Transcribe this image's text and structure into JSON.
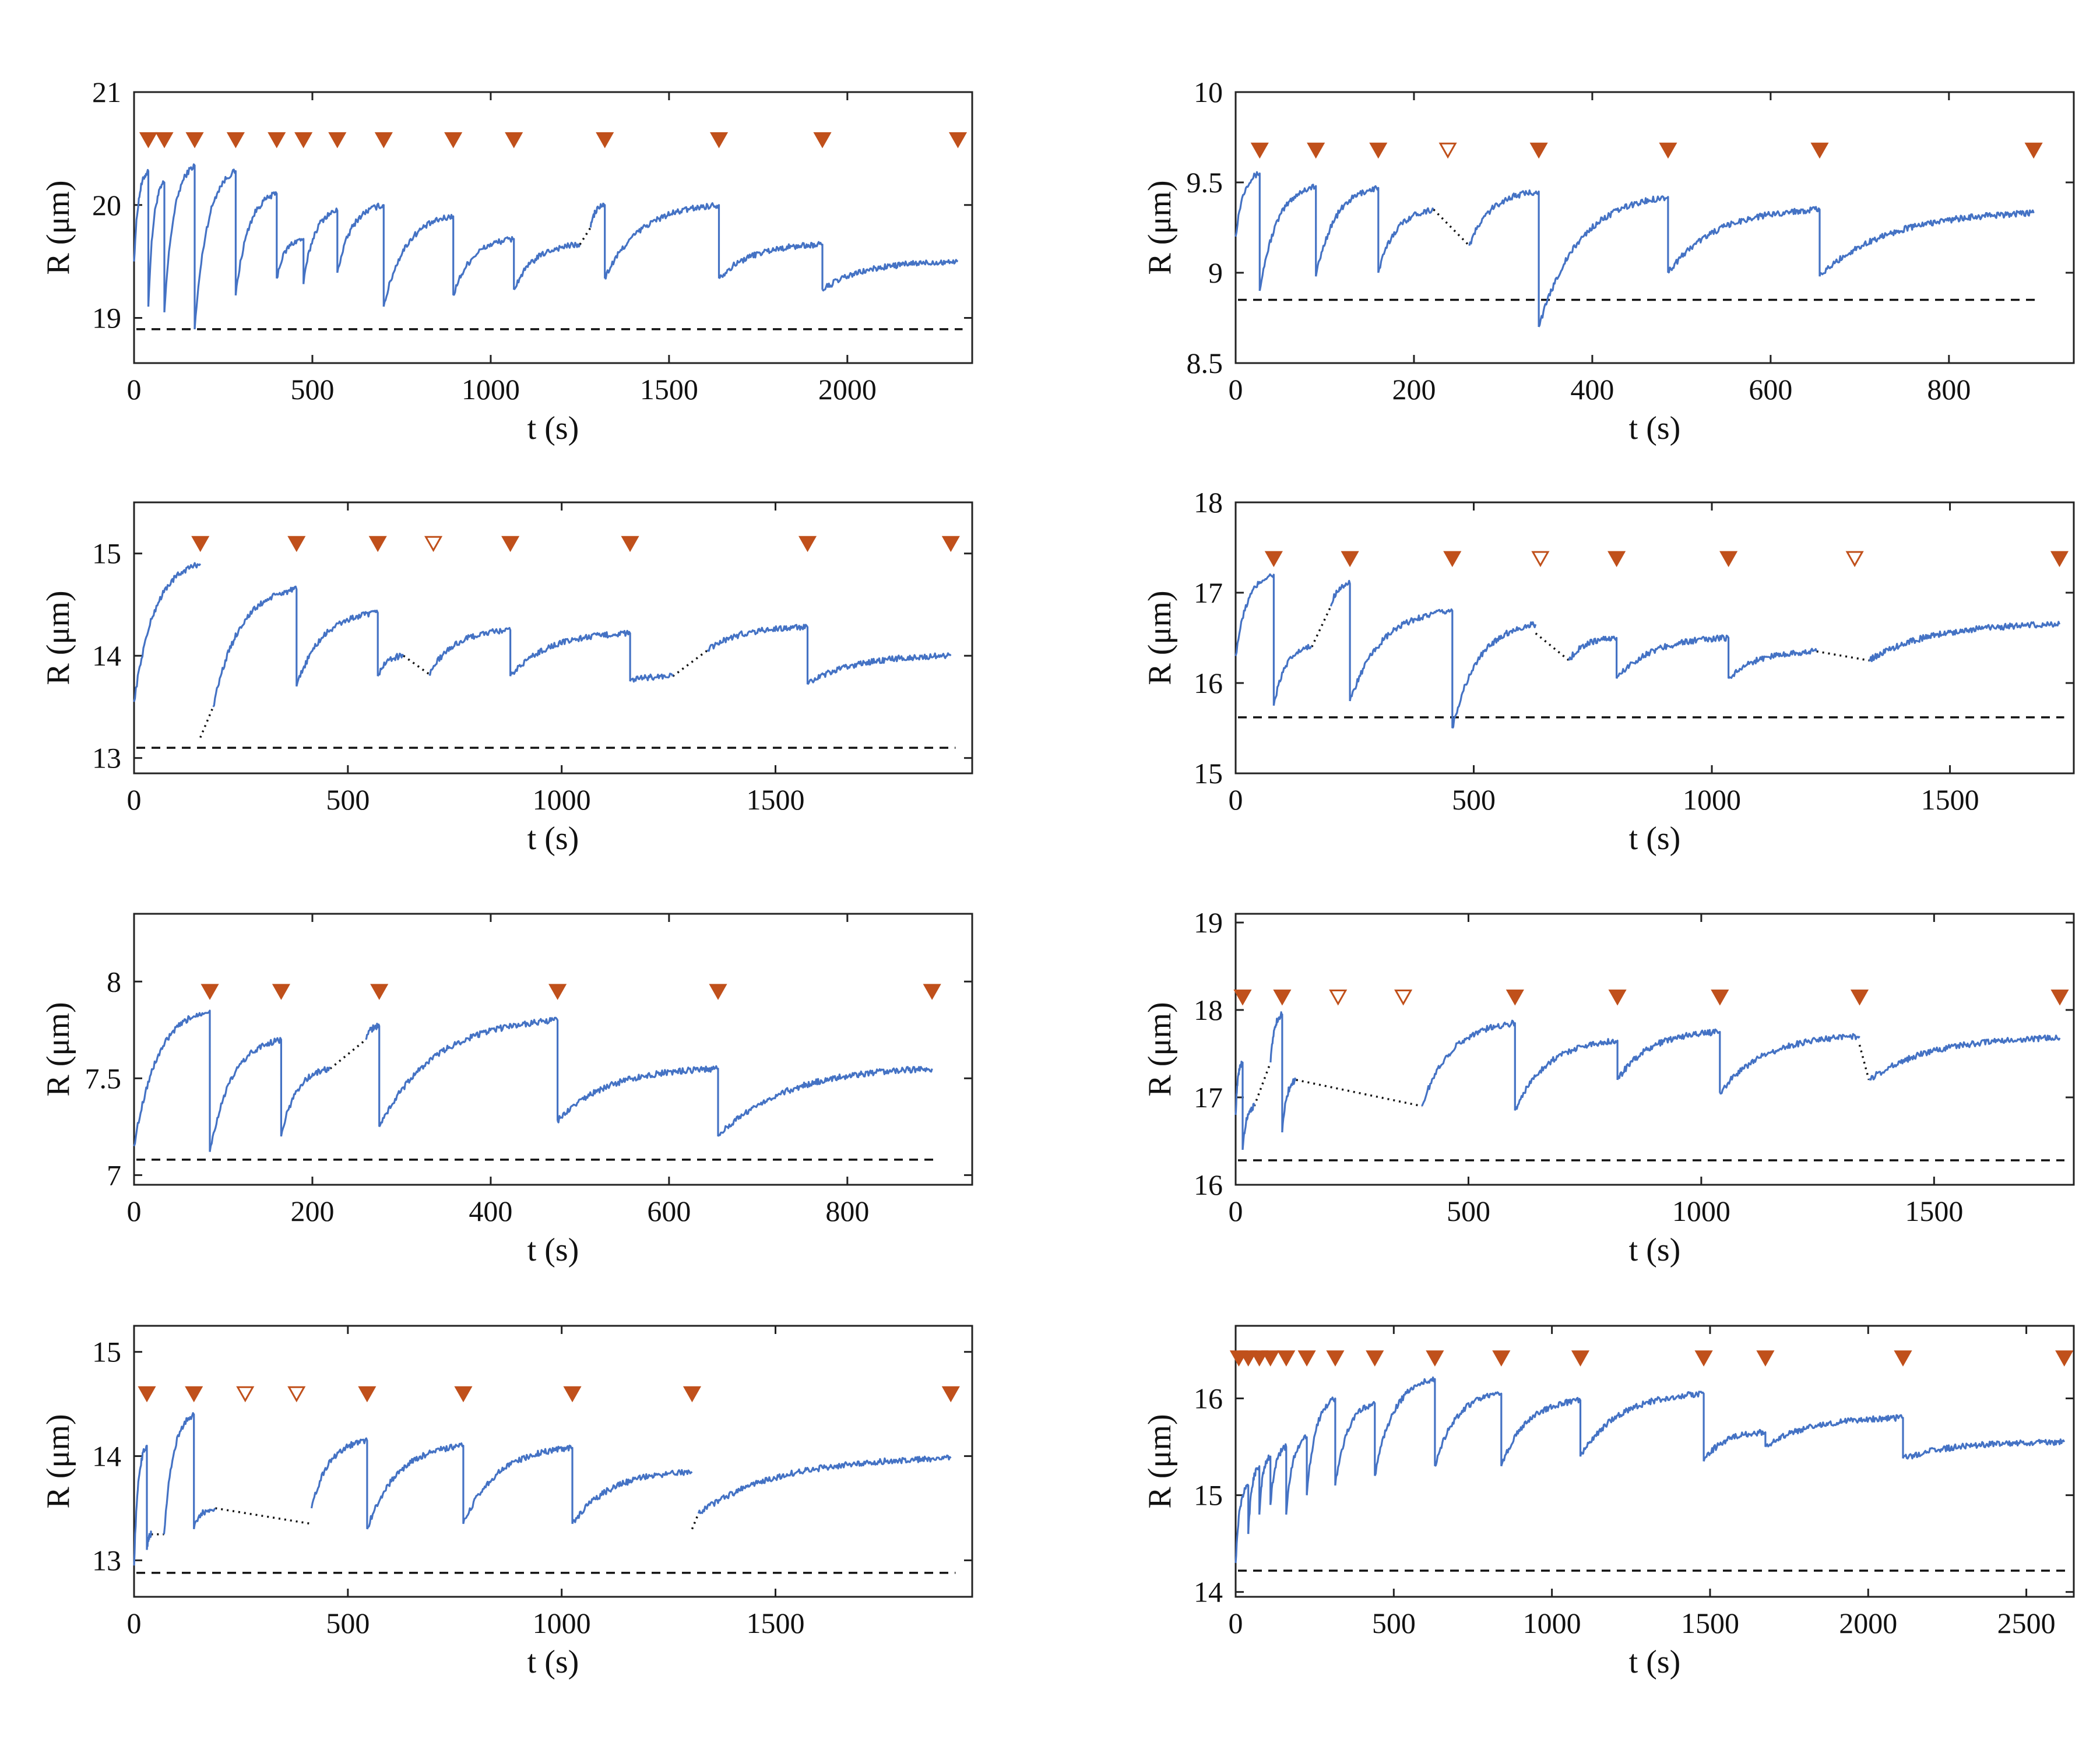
{
  "colors": {
    "trace": "#4472c4",
    "marker": "#c0501b",
    "axis": "#222222"
  },
  "chart_data": [
    {
      "type": "line",
      "xlabel": "t (s)",
      "ylabel": "R (μm)",
      "xlim": [
        0,
        2350
      ],
      "ylim": [
        18.6,
        21
      ],
      "xticks": [
        0,
        500,
        1000,
        1500,
        2000
      ],
      "xtick_labels": [
        "0",
        "500",
        "1000",
        "1500",
        "2000"
      ],
      "yticks": [
        19,
        20,
        21
      ],
      "ytick_labels": [
        "19",
        "20",
        "21"
      ],
      "baseline": 18.9,
      "marker_y": 20.58,
      "markers_filled": [
        40,
        85,
        170,
        285,
        400,
        475,
        570,
        700,
        895,
        1065,
        1320,
        1640,
        1930,
        2310
      ],
      "markers_open": [],
      "segments": [
        {
          "t0": 0,
          "t1": 40,
          "r0": 19.5,
          "r1": 20.3
        },
        {
          "t0": 40,
          "t1": 85,
          "r0": 19.1,
          "r1": 20.2
        },
        {
          "t0": 85,
          "t1": 170,
          "r0": 19.05,
          "r1": 20.35
        },
        {
          "t0": 170,
          "t1": 285,
          "r0": 18.9,
          "r1": 20.3
        },
        {
          "t0": 285,
          "t1": 400,
          "r0": 19.2,
          "r1": 20.1
        },
        {
          "t0": 400,
          "t1": 475,
          "r0": 19.35,
          "r1": 19.7
        },
        {
          "t0": 475,
          "t1": 570,
          "r0": 19.3,
          "r1": 19.95
        },
        {
          "t0": 570,
          "t1": 700,
          "r0": 19.4,
          "r1": 20.0
        },
        {
          "t0": 700,
          "t1": 895,
          "r0": 19.1,
          "r1": 19.9
        },
        {
          "t0": 895,
          "t1": 1065,
          "r0": 19.2,
          "r1": 19.7
        },
        {
          "t0": 1065,
          "t1": 1250,
          "r0": 19.25,
          "r1": 19.65
        },
        {
          "t0": 1280,
          "t1": 1320,
          "r0": 19.8,
          "r1": 20.0
        },
        {
          "t0": 1320,
          "t1": 1640,
          "r0": 19.35,
          "r1": 20.0
        },
        {
          "t0": 1640,
          "t1": 1930,
          "r0": 19.35,
          "r1": 19.65
        },
        {
          "t0": 1930,
          "t1": 2310,
          "r0": 19.25,
          "r1": 19.5
        }
      ],
      "gaps": [
        {
          "t0": 1250,
          "r0": 19.65,
          "t1": 1280,
          "r1": 19.8
        }
      ]
    },
    {
      "type": "line",
      "xlabel": "t (s)",
      "ylabel": "R (μm)",
      "xlim": [
        0,
        940
      ],
      "ylim": [
        8.5,
        10
      ],
      "xticks": [
        0,
        200,
        400,
        600,
        800
      ],
      "xtick_labels": [
        "0",
        "200",
        "400",
        "600",
        "800"
      ],
      "yticks": [
        8.5,
        9,
        9.5,
        10
      ],
      "ytick_labels": [
        "8.5",
        "9",
        "9.5",
        "10"
      ],
      "baseline": 8.85,
      "marker_y": 9.68,
      "markers_filled": [
        27,
        90,
        160,
        340,
        485,
        655,
        895
      ],
      "markers_open": [
        238
      ],
      "segments": [
        {
          "t0": 0,
          "t1": 27,
          "r0": 9.2,
          "r1": 9.55
        },
        {
          "t0": 27,
          "t1": 90,
          "r0": 8.9,
          "r1": 9.48
        },
        {
          "t0": 90,
          "t1": 160,
          "r0": 8.98,
          "r1": 9.47
        },
        {
          "t0": 160,
          "t1": 222,
          "r0": 9.0,
          "r1": 9.35
        },
        {
          "t0": 262,
          "t1": 340,
          "r0": 9.15,
          "r1": 9.45
        },
        {
          "t0": 340,
          "t1": 485,
          "r0": 8.7,
          "r1": 9.42
        },
        {
          "t0": 485,
          "t1": 655,
          "r0": 9.0,
          "r1": 9.35
        },
        {
          "t0": 655,
          "t1": 895,
          "r0": 8.98,
          "r1": 9.33
        }
      ],
      "gaps": [
        {
          "t0": 222,
          "r0": 9.35,
          "t1": 262,
          "r1": 9.15
        }
      ]
    },
    {
      "type": "line",
      "xlabel": "t (s)",
      "ylabel": "R (μm)",
      "xlim": [
        0,
        1960
      ],
      "ylim": [
        12.85,
        15.5
      ],
      "xticks": [
        0,
        500,
        1000,
        1500
      ],
      "xtick_labels": [
        "0",
        "500",
        "1000",
        "1500"
      ],
      "yticks": [
        13,
        14,
        15
      ],
      "ytick_labels": [
        "13",
        "14",
        "15"
      ],
      "baseline": 13.1,
      "marker_y": 15.1,
      "markers_filled": [
        155,
        380,
        570,
        880,
        1160,
        1575,
        1910
      ],
      "markers_open": [
        700
      ],
      "segments": [
        {
          "t0": 0,
          "t1": 155,
          "r0": 13.55,
          "r1": 14.9
        },
        {
          "t0": 185,
          "t1": 380,
          "r0": 13.5,
          "r1": 14.65
        },
        {
          "t0": 380,
          "t1": 570,
          "r0": 13.7,
          "r1": 14.42
        },
        {
          "t0": 570,
          "t1": 630,
          "r0": 13.8,
          "r1": 14.0
        },
        {
          "t0": 690,
          "t1": 880,
          "r0": 13.82,
          "r1": 14.25
        },
        {
          "t0": 880,
          "t1": 1160,
          "r0": 13.8,
          "r1": 14.22
        },
        {
          "t0": 1160,
          "t1": 1260,
          "r0": 13.75,
          "r1": 13.8
        },
        {
          "t0": 1340,
          "t1": 1575,
          "r0": 14.05,
          "r1": 14.28
        },
        {
          "t0": 1575,
          "t1": 1910,
          "r0": 13.72,
          "r1": 14.0
        }
      ],
      "gaps": [
        {
          "t0": 155,
          "r0": 13.2,
          "t1": 185,
          "r1": 13.5
        },
        {
          "t0": 630,
          "r0": 14.0,
          "t1": 690,
          "r1": 13.82
        },
        {
          "t0": 1260,
          "r0": 13.8,
          "t1": 1340,
          "r1": 14.05
        }
      ]
    },
    {
      "type": "line",
      "xlabel": "t (s)",
      "ylabel": "R (μm)",
      "xlim": [
        0,
        1760
      ],
      "ylim": [
        15,
        18
      ],
      "xticks": [
        0,
        500,
        1000,
        1500
      ],
      "xtick_labels": [
        "0",
        "500",
        "1000",
        "1500"
      ],
      "yticks": [
        15,
        16,
        17,
        18
      ],
      "ytick_labels": [
        "15",
        "16",
        "17",
        "18"
      ],
      "baseline": 15.62,
      "marker_y": 17.38,
      "markers_filled": [
        80,
        240,
        455,
        800,
        1035,
        1730
      ],
      "markers_open": [
        640,
        1300
      ],
      "segments": [
        {
          "t0": 0,
          "t1": 80,
          "r0": 16.3,
          "r1": 17.2
        },
        {
          "t0": 80,
          "t1": 160,
          "r0": 15.75,
          "r1": 16.4
        },
        {
          "t0": 200,
          "t1": 240,
          "r0": 16.85,
          "r1": 17.1
        },
        {
          "t0": 240,
          "t1": 455,
          "r0": 15.8,
          "r1": 16.8
        },
        {
          "t0": 455,
          "t1": 630,
          "r0": 15.5,
          "r1": 16.65
        },
        {
          "t0": 700,
          "t1": 800,
          "r0": 16.25,
          "r1": 16.5
        },
        {
          "t0": 800,
          "t1": 1035,
          "r0": 16.05,
          "r1": 16.5
        },
        {
          "t0": 1035,
          "t1": 1220,
          "r0": 16.05,
          "r1": 16.35
        },
        {
          "t0": 1330,
          "t1": 1730,
          "r0": 16.25,
          "r1": 16.65
        }
      ],
      "gaps": [
        {
          "t0": 160,
          "r0": 16.4,
          "t1": 200,
          "r1": 16.85
        },
        {
          "t0": 630,
          "r0": 16.55,
          "t1": 700,
          "r1": 16.25
        },
        {
          "t0": 1220,
          "r0": 16.35,
          "t1": 1330,
          "r1": 16.25
        }
      ]
    },
    {
      "type": "line",
      "xlabel": "t (s)",
      "ylabel": "R (μm)",
      "xlim": [
        0,
        940
      ],
      "ylim": [
        6.95,
        8.35
      ],
      "xticks": [
        0,
        200,
        400,
        600,
        800
      ],
      "xtick_labels": [
        "0",
        "200",
        "400",
        "600",
        "800"
      ],
      "yticks": [
        7,
        7.5,
        8
      ],
      "ytick_labels": [
        "7",
        "7.5",
        "8"
      ],
      "baseline": 7.08,
      "marker_y": 7.95,
      "markers_filled": [
        85,
        165,
        275,
        475,
        655,
        895
      ],
      "markers_open": [],
      "segments": [
        {
          "t0": 0,
          "t1": 85,
          "r0": 7.15,
          "r1": 7.85
        },
        {
          "t0": 85,
          "t1": 165,
          "r0": 7.12,
          "r1": 7.7
        },
        {
          "t0": 165,
          "t1": 220,
          "r0": 7.2,
          "r1": 7.55
        },
        {
          "t0": 260,
          "t1": 275,
          "r0": 7.7,
          "r1": 7.77
        },
        {
          "t0": 275,
          "t1": 475,
          "r0": 7.25,
          "r1": 7.8
        },
        {
          "t0": 475,
          "t1": 655,
          "r0": 7.28,
          "r1": 7.55
        },
        {
          "t0": 655,
          "t1": 895,
          "r0": 7.2,
          "r1": 7.55
        }
      ],
      "gaps": [
        {
          "t0": 220,
          "r0": 7.55,
          "t1": 260,
          "r1": 7.7
        }
      ]
    },
    {
      "type": "line",
      "xlabel": "t (s)",
      "ylabel": "R (μm)",
      "xlim": [
        0,
        1800
      ],
      "ylim": [
        16,
        19.1
      ],
      "xticks": [
        0,
        500,
        1000,
        1500
      ],
      "xtick_labels": [
        "0",
        "500",
        "1000",
        "1500"
      ],
      "yticks": [
        16,
        17,
        18,
        19
      ],
      "ytick_labels": [
        "16",
        "17",
        "18",
        "19"
      ],
      "baseline": 16.28,
      "marker_y": 18.15,
      "markers_filled": [
        15,
        100,
        600,
        820,
        1040,
        1340,
        1770
      ],
      "markers_open": [
        220,
        360
      ],
      "segments": [
        {
          "t0": 0,
          "t1": 15,
          "r0": 16.8,
          "r1": 17.4
        },
        {
          "t0": 15,
          "t1": 40,
          "r0": 16.4,
          "r1": 16.9
        },
        {
          "t0": 75,
          "t1": 100,
          "r0": 17.4,
          "r1": 17.95
        },
        {
          "t0": 100,
          "t1": 130,
          "r0": 16.6,
          "r1": 17.2
        },
        {
          "t0": 400,
          "t1": 600,
          "r0": 16.9,
          "r1": 17.85
        },
        {
          "t0": 600,
          "t1": 820,
          "r0": 16.85,
          "r1": 17.65
        },
        {
          "t0": 820,
          "t1": 1040,
          "r0": 17.2,
          "r1": 17.75
        },
        {
          "t0": 1040,
          "t1": 1340,
          "r0": 17.05,
          "r1": 17.7
        },
        {
          "t0": 1360,
          "t1": 1770,
          "r0": 17.2,
          "r1": 17.68
        }
      ],
      "gaps": [
        {
          "t0": 40,
          "r0": 16.9,
          "t1": 75,
          "r1": 17.4
        },
        {
          "t0": 130,
          "r0": 17.2,
          "t1": 400,
          "r1": 16.9
        },
        {
          "t0": 1340,
          "r0": 17.6,
          "t1": 1360,
          "r1": 17.2
        }
      ]
    },
    {
      "type": "line",
      "xlabel": "t (s)",
      "ylabel": "R (μm)",
      "xlim": [
        0,
        1960
      ],
      "ylim": [
        12.65,
        15.25
      ],
      "xticks": [
        0,
        500,
        1000,
        1500
      ],
      "xtick_labels": [
        "0",
        "500",
        "1000",
        "1500"
      ],
      "yticks": [
        13,
        14,
        15
      ],
      "ytick_labels": [
        "13",
        "14",
        "15"
      ],
      "baseline": 12.88,
      "marker_y": 14.6,
      "markers_filled": [
        30,
        140,
        545,
        770,
        1025,
        1305,
        1910
      ],
      "markers_open": [
        260,
        380
      ],
      "segments": [
        {
          "t0": 0,
          "t1": 30,
          "r0": 12.95,
          "r1": 14.1
        },
        {
          "t0": 30,
          "t1": 40,
          "r0": 13.1,
          "r1": 13.25
        },
        {
          "t0": 70,
          "t1": 140,
          "r0": 13.25,
          "r1": 14.4
        },
        {
          "t0": 140,
          "t1": 190,
          "r0": 13.3,
          "r1": 13.5
        },
        {
          "t0": 415,
          "t1": 545,
          "r0": 13.5,
          "r1": 14.15
        },
        {
          "t0": 545,
          "t1": 770,
          "r0": 13.3,
          "r1": 14.1
        },
        {
          "t0": 770,
          "t1": 1025,
          "r0": 13.35,
          "r1": 14.08
        },
        {
          "t0": 1025,
          "t1": 1305,
          "r0": 13.35,
          "r1": 13.85
        },
        {
          "t0": 1320,
          "t1": 1910,
          "r0": 13.45,
          "r1": 13.98
        }
      ],
      "gaps": [
        {
          "t0": 40,
          "r0": 13.25,
          "t1": 70,
          "r1": 13.25
        },
        {
          "t0": 190,
          "r0": 13.5,
          "t1": 415,
          "r1": 13.35
        },
        {
          "t0": 1305,
          "r0": 13.3,
          "t1": 1320,
          "r1": 13.45
        }
      ]
    },
    {
      "type": "line",
      "xlabel": "t (s)",
      "ylabel": "R (μm)",
      "xlim": [
        0,
        2650
      ],
      "ylim": [
        13.95,
        16.75
      ],
      "xticks": [
        0,
        500,
        1000,
        1500,
        2000,
        2500
      ],
      "xtick_labels": [
        "0",
        "500",
        "1000",
        "1500",
        "2000",
        "2500"
      ],
      "yticks": [
        14,
        15,
        16
      ],
      "ytick_labels": [
        "14",
        "15",
        "16"
      ],
      "baseline": 14.22,
      "marker_y": 16.42,
      "markers_filled": [
        10,
        40,
        75,
        110,
        160,
        225,
        315,
        440,
        630,
        840,
        1090,
        1480,
        1675,
        2110,
        2620
      ],
      "markers_open": [],
      "segments": [
        {
          "t0": 0,
          "t1": 40,
          "r0": 14.3,
          "r1": 15.1
        },
        {
          "t0": 40,
          "t1": 75,
          "r0": 14.6,
          "r1": 15.3
        },
        {
          "t0": 75,
          "t1": 110,
          "r0": 14.8,
          "r1": 15.4
        },
        {
          "t0": 110,
          "t1": 160,
          "r0": 14.9,
          "r1": 15.5
        },
        {
          "t0": 160,
          "t1": 225,
          "r0": 14.8,
          "r1": 15.6
        },
        {
          "t0": 225,
          "t1": 315,
          "r0": 15.0,
          "r1": 16.0
        },
        {
          "t0": 315,
          "t1": 440,
          "r0": 15.1,
          "r1": 15.95
        },
        {
          "t0": 440,
          "t1": 630,
          "r0": 15.2,
          "r1": 16.2
        },
        {
          "t0": 630,
          "t1": 840,
          "r0": 15.3,
          "r1": 16.05
        },
        {
          "t0": 840,
          "t1": 1090,
          "r0": 15.3,
          "r1": 15.98
        },
        {
          "t0": 1090,
          "t1": 1480,
          "r0": 15.4,
          "r1": 16.05
        },
        {
          "t0": 1480,
          "t1": 1675,
          "r0": 15.35,
          "r1": 15.65
        },
        {
          "t0": 1675,
          "t1": 2110,
          "r0": 15.5,
          "r1": 15.8
        },
        {
          "t0": 2110,
          "t1": 2620,
          "r0": 15.38,
          "r1": 15.55
        }
      ],
      "gaps": []
    }
  ]
}
